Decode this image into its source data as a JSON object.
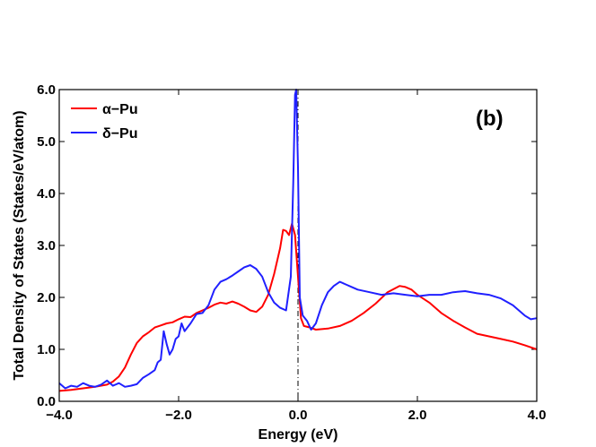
{
  "chart_data": {
    "type": "line",
    "panel_label": "(b)",
    "xlabel": "Energy (eV)",
    "ylabel": "Total Density of States (States/eV/atom)",
    "xlim": [
      -4.0,
      4.0
    ],
    "ylim": [
      0.0,
      6.0
    ],
    "x_ticks": [
      -4.0,
      -2.0,
      0.0,
      2.0,
      4.0
    ],
    "x_tick_labels": [
      "−4.0",
      "−2.0",
      "0.0",
      "2.0",
      "4.0"
    ],
    "y_ticks": [
      0.0,
      1.0,
      2.0,
      3.0,
      4.0,
      5.0,
      6.0
    ],
    "y_tick_labels": [
      "0.0",
      "1.0",
      "2.0",
      "3.0",
      "4.0",
      "5.0",
      "6.0"
    ],
    "fermi_line_x": 0.0,
    "legend_position": "top-left",
    "grid": false,
    "series": [
      {
        "name": "α−Pu",
        "color": "#ff0000",
        "points": [
          [
            -4.0,
            0.2
          ],
          [
            -3.8,
            0.22
          ],
          [
            -3.6,
            0.25
          ],
          [
            -3.4,
            0.28
          ],
          [
            -3.2,
            0.32
          ],
          [
            -3.1,
            0.38
          ],
          [
            -3.0,
            0.48
          ],
          [
            -2.9,
            0.65
          ],
          [
            -2.8,
            0.9
          ],
          [
            -2.7,
            1.12
          ],
          [
            -2.6,
            1.25
          ],
          [
            -2.5,
            1.33
          ],
          [
            -2.4,
            1.42
          ],
          [
            -2.3,
            1.46
          ],
          [
            -2.2,
            1.5
          ],
          [
            -2.1,
            1.52
          ],
          [
            -2.0,
            1.58
          ],
          [
            -1.9,
            1.63
          ],
          [
            -1.8,
            1.62
          ],
          [
            -1.7,
            1.7
          ],
          [
            -1.6,
            1.75
          ],
          [
            -1.5,
            1.8
          ],
          [
            -1.4,
            1.86
          ],
          [
            -1.3,
            1.9
          ],
          [
            -1.2,
            1.88
          ],
          [
            -1.1,
            1.92
          ],
          [
            -1.0,
            1.88
          ],
          [
            -0.9,
            1.82
          ],
          [
            -0.8,
            1.75
          ],
          [
            -0.7,
            1.72
          ],
          [
            -0.6,
            1.82
          ],
          [
            -0.5,
            2.05
          ],
          [
            -0.4,
            2.45
          ],
          [
            -0.3,
            2.95
          ],
          [
            -0.25,
            3.3
          ],
          [
            -0.2,
            3.28
          ],
          [
            -0.15,
            3.2
          ],
          [
            -0.1,
            3.42
          ],
          [
            -0.05,
            3.2
          ],
          [
            0.0,
            2.4
          ],
          [
            0.05,
            1.6
          ],
          [
            0.1,
            1.45
          ],
          [
            0.2,
            1.42
          ],
          [
            0.3,
            1.38
          ],
          [
            0.5,
            1.4
          ],
          [
            0.7,
            1.45
          ],
          [
            0.9,
            1.55
          ],
          [
            1.1,
            1.7
          ],
          [
            1.3,
            1.88
          ],
          [
            1.5,
            2.1
          ],
          [
            1.7,
            2.22
          ],
          [
            1.8,
            2.2
          ],
          [
            1.9,
            2.15
          ],
          [
            2.0,
            2.05
          ],
          [
            2.2,
            1.9
          ],
          [
            2.4,
            1.7
          ],
          [
            2.6,
            1.55
          ],
          [
            2.8,
            1.42
          ],
          [
            3.0,
            1.3
          ],
          [
            3.2,
            1.25
          ],
          [
            3.4,
            1.2
          ],
          [
            3.6,
            1.15
          ],
          [
            3.8,
            1.08
          ],
          [
            4.0,
            1.0
          ]
        ]
      },
      {
        "name": "δ−Pu",
        "color": "#2020ff",
        "points": [
          [
            -4.0,
            0.35
          ],
          [
            -3.9,
            0.25
          ],
          [
            -3.8,
            0.3
          ],
          [
            -3.7,
            0.28
          ],
          [
            -3.6,
            0.35
          ],
          [
            -3.5,
            0.3
          ],
          [
            -3.4,
            0.28
          ],
          [
            -3.3,
            0.32
          ],
          [
            -3.2,
            0.4
          ],
          [
            -3.1,
            0.3
          ],
          [
            -3.0,
            0.35
          ],
          [
            -2.9,
            0.28
          ],
          [
            -2.8,
            0.3
          ],
          [
            -2.7,
            0.33
          ],
          [
            -2.6,
            0.45
          ],
          [
            -2.5,
            0.52
          ],
          [
            -2.4,
            0.6
          ],
          [
            -2.35,
            0.75
          ],
          [
            -2.3,
            0.8
          ],
          [
            -2.25,
            1.35
          ],
          [
            -2.2,
            1.1
          ],
          [
            -2.15,
            0.9
          ],
          [
            -2.1,
            1.0
          ],
          [
            -2.05,
            1.2
          ],
          [
            -2.0,
            1.25
          ],
          [
            -1.95,
            1.5
          ],
          [
            -1.9,
            1.35
          ],
          [
            -1.8,
            1.5
          ],
          [
            -1.7,
            1.68
          ],
          [
            -1.6,
            1.7
          ],
          [
            -1.5,
            1.85
          ],
          [
            -1.4,
            2.15
          ],
          [
            -1.3,
            2.3
          ],
          [
            -1.2,
            2.35
          ],
          [
            -1.1,
            2.42
          ],
          [
            -1.0,
            2.5
          ],
          [
            -0.9,
            2.58
          ],
          [
            -0.8,
            2.62
          ],
          [
            -0.7,
            2.55
          ],
          [
            -0.6,
            2.4
          ],
          [
            -0.5,
            2.1
          ],
          [
            -0.4,
            1.9
          ],
          [
            -0.3,
            1.8
          ],
          [
            -0.2,
            1.75
          ],
          [
            -0.12,
            2.4
          ],
          [
            -0.08,
            4.2
          ],
          [
            -0.05,
            5.9
          ],
          [
            -0.03,
            6.0
          ],
          [
            0.0,
            4.5
          ],
          [
            0.03,
            2.0
          ],
          [
            0.08,
            1.65
          ],
          [
            0.15,
            1.55
          ],
          [
            0.22,
            1.38
          ],
          [
            0.3,
            1.5
          ],
          [
            0.4,
            1.85
          ],
          [
            0.5,
            2.1
          ],
          [
            0.6,
            2.22
          ],
          [
            0.7,
            2.3
          ],
          [
            0.8,
            2.25
          ],
          [
            0.9,
            2.2
          ],
          [
            1.0,
            2.15
          ],
          [
            1.2,
            2.1
          ],
          [
            1.4,
            2.05
          ],
          [
            1.6,
            2.08
          ],
          [
            1.8,
            2.05
          ],
          [
            2.0,
            2.02
          ],
          [
            2.2,
            2.05
          ],
          [
            2.4,
            2.05
          ],
          [
            2.6,
            2.1
          ],
          [
            2.8,
            2.12
          ],
          [
            3.0,
            2.08
          ],
          [
            3.2,
            2.05
          ],
          [
            3.4,
            1.98
          ],
          [
            3.6,
            1.85
          ],
          [
            3.8,
            1.65
          ],
          [
            3.9,
            1.58
          ],
          [
            4.0,
            1.6
          ]
        ]
      }
    ]
  }
}
